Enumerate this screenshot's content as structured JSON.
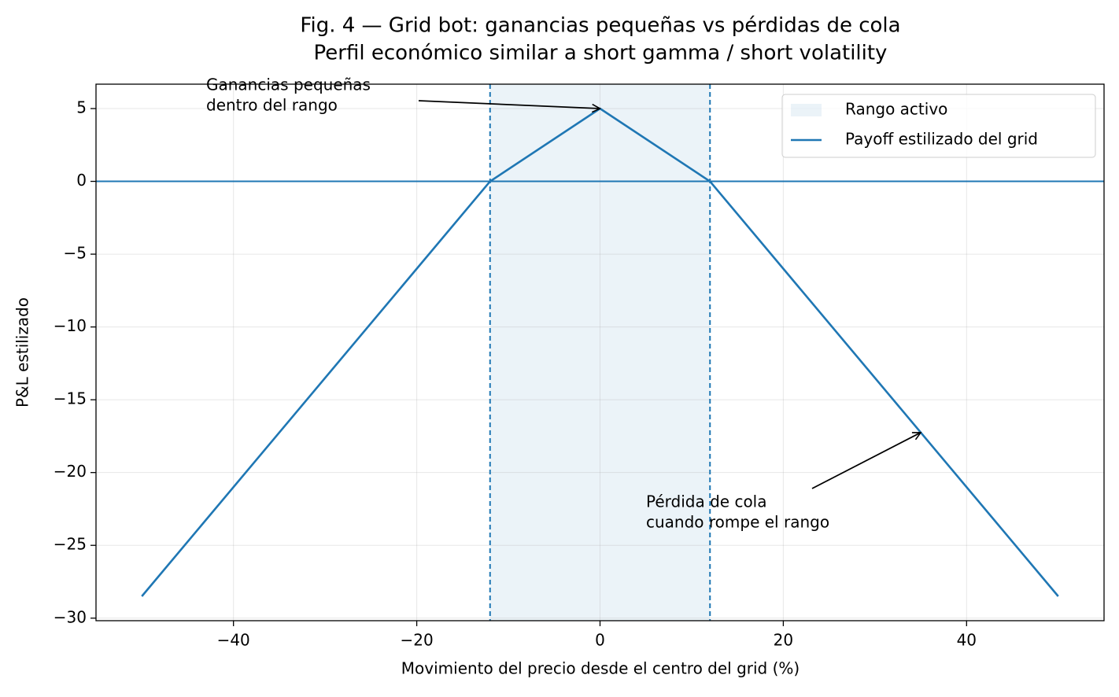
{
  "chart_data": {
    "type": "line",
    "title": "Fig. 4 — Grid bot: ganancias pequeñas vs pérdidas de cola",
    "subtitle": "Perfil económico similar a short gamma / short volatility",
    "x_label": "Movimiento del precio desde el centro del grid (%)",
    "y_label": "P&L estilizado",
    "x": [
      -50,
      -12,
      0,
      12,
      50
    ],
    "series": [
      {
        "name": "Payoff estilizado del grid",
        "color": "#1f77b4",
        "values": [
          -28.5,
          0,
          5,
          0,
          -28.5
        ]
      }
    ],
    "range": [
      -12,
      12
    ],
    "range_name": "Rango activo",
    "range_color": "#1f77b4",
    "hline": 0,
    "annotations": [
      {
        "text": [
          "Ganancias pequeñas",
          "dentro del rango"
        ],
        "xy": [
          0,
          5
        ]
      },
      {
        "text": [
          "Pérdida de cola",
          "cuando rompe el rango"
        ],
        "xy": [
          35,
          -17.25
        ]
      }
    ],
    "xlim": [
      -55,
      55
    ],
    "ylim": [
      -30.175,
      6.675
    ],
    "xticks": [
      {
        "value": -40,
        "label": "−40"
      },
      {
        "value": -20,
        "label": "−20"
      },
      0,
      20,
      40
    ],
    "yticks": [
      5,
      0,
      {
        "value": -5,
        "label": "−5"
      },
      {
        "value": -10,
        "label": "−10"
      },
      {
        "value": -15,
        "label": "−15"
      },
      {
        "value": -20,
        "label": "−20"
      },
      {
        "value": -25,
        "label": "−25"
      },
      {
        "value": -30,
        "label": "−30"
      }
    ],
    "grid": true,
    "legend": "upper right"
  }
}
